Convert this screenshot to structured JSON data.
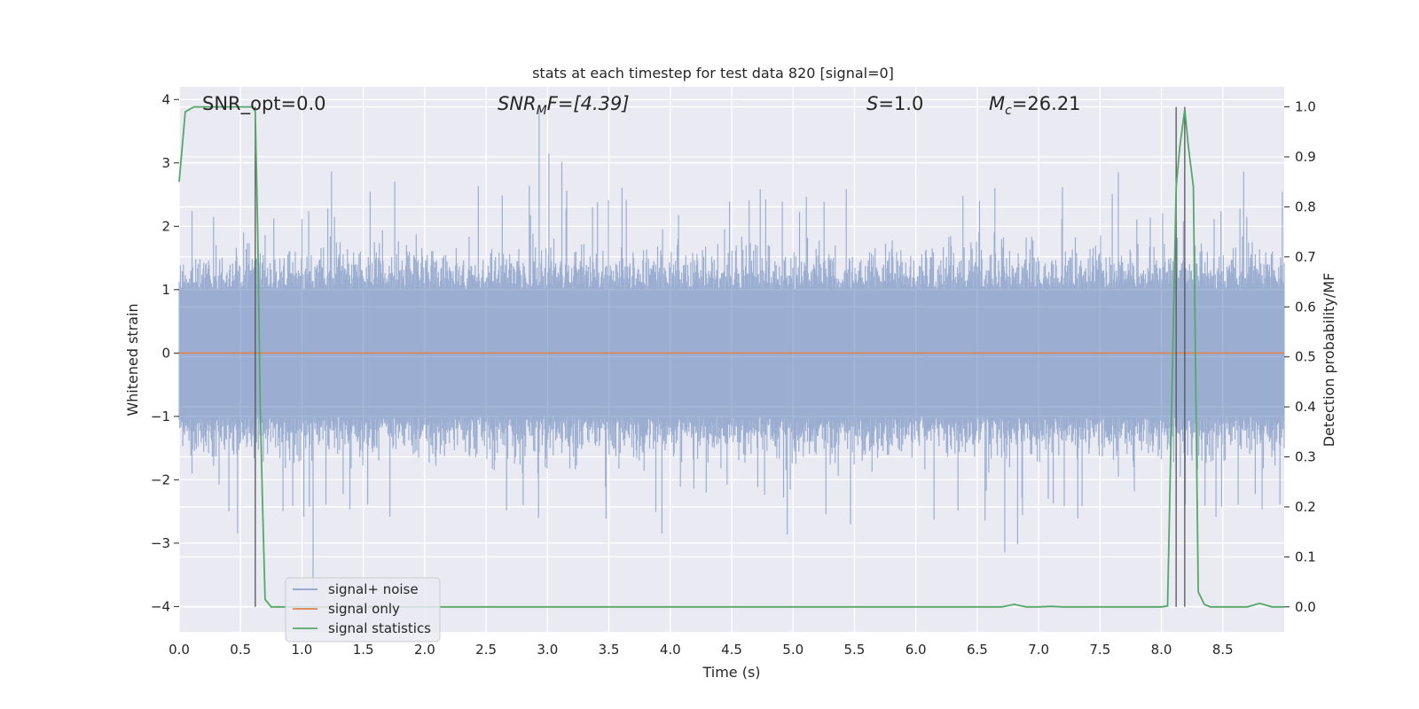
{
  "chart_data": {
    "type": "line",
    "title": "stats at each timestep for test data 820 [signal=0]",
    "xlabel": "Time (s)",
    "ylabel": "Whitened strain",
    "y2label": "Detection probability/MF",
    "xlim": [
      0,
      9.0
    ],
    "ylim": [
      -4.4,
      4.2
    ],
    "y2lim": [
      -0.05,
      1.04
    ],
    "x_ticks": [
      0.0,
      0.5,
      1.0,
      1.5,
      2.0,
      2.5,
      3.0,
      3.5,
      4.0,
      4.5,
      5.0,
      5.5,
      6.0,
      6.5,
      7.0,
      7.5,
      8.0,
      8.5
    ],
    "x_tick_labels": [
      "0.0",
      "0.5",
      "1.0",
      "1.5",
      "2.0",
      "2.5",
      "3.0",
      "3.5",
      "4.0",
      "4.5",
      "5.0",
      "5.5",
      "6.0",
      "6.5",
      "7.0",
      "7.5",
      "8.0",
      "8.5"
    ],
    "y_ticks": [
      -4,
      -3,
      -2,
      -1,
      0,
      1,
      2,
      3,
      4
    ],
    "y_tick_labels": [
      "−4",
      "−3",
      "−2",
      "−1",
      "0",
      "1",
      "2",
      "3",
      "4"
    ],
    "y2_ticks": [
      0.0,
      0.1,
      0.2,
      0.3,
      0.4,
      0.5,
      0.6,
      0.7,
      0.8,
      0.9,
      1.0
    ],
    "y2_tick_labels": [
      "0.0",
      "0.1",
      "0.2",
      "0.3",
      "0.4",
      "0.5",
      "0.6",
      "0.7",
      "0.8",
      "0.9",
      "1.0"
    ],
    "grid": true,
    "legend_position": "lower-left",
    "annotations": [
      {
        "text": "SNR_opt=0.0",
        "italic": false
      },
      {
        "text": "SNR_MF=[4.39]",
        "main": "SNR",
        "sub": "M",
        "rest": "F=[4.39]",
        "italic": true
      },
      {
        "text": "S=1.0",
        "main": "S",
        "rest": "=1.0",
        "italic": true
      },
      {
        "text": "M_c=26.21",
        "main": "M",
        "sub": "c",
        "rest": "=26.21",
        "italic": true
      }
    ],
    "vlines": [
      0.62,
      8.12,
      8.19
    ],
    "series": [
      {
        "name": "signal+ noise",
        "color": "#4c72b0",
        "style": "noise",
        "sample_count": 1800,
        "core_amplitude": 1.0,
        "typical_peak": 1.8,
        "max_value": 3.9,
        "min_value": -3.7
      },
      {
        "name": "signal only",
        "color": "#dd8452",
        "x": [
          0,
          9.0
        ],
        "y": [
          0,
          0
        ]
      },
      {
        "name": "signal statistics",
        "color": "#55a868",
        "axis": "y2",
        "x": [
          0.0,
          0.05,
          0.12,
          0.2,
          0.3,
          0.4,
          0.5,
          0.6,
          0.62,
          0.64,
          0.66,
          0.68,
          0.7,
          0.75,
          0.8,
          0.9,
          1.0,
          2.0,
          3.0,
          4.0,
          5.0,
          6.0,
          6.7,
          6.8,
          6.9,
          7.0,
          7.1,
          7.2,
          7.5,
          7.8,
          8.0,
          8.05,
          8.12,
          8.15,
          8.19,
          8.22,
          8.26,
          8.3,
          8.35,
          8.4,
          8.5,
          8.7,
          8.8,
          8.9,
          9.0
        ],
        "y": [
          0.85,
          0.99,
          1.0,
          1.0,
          1.0,
          1.0,
          1.0,
          1.0,
          0.99,
          0.75,
          0.4,
          0.2,
          0.015,
          0.0,
          0.0,
          0.0,
          0.0,
          0.0,
          0.0,
          0.0,
          0.0,
          0.0,
          0.0,
          0.005,
          0.0,
          0.0,
          0.001,
          0.0,
          0.0,
          0.0,
          0.0,
          0.002,
          0.84,
          0.92,
          0.995,
          0.92,
          0.84,
          0.03,
          0.005,
          0.0,
          0.0,
          0.0,
          0.007,
          0.0,
          0.0
        ]
      }
    ]
  }
}
